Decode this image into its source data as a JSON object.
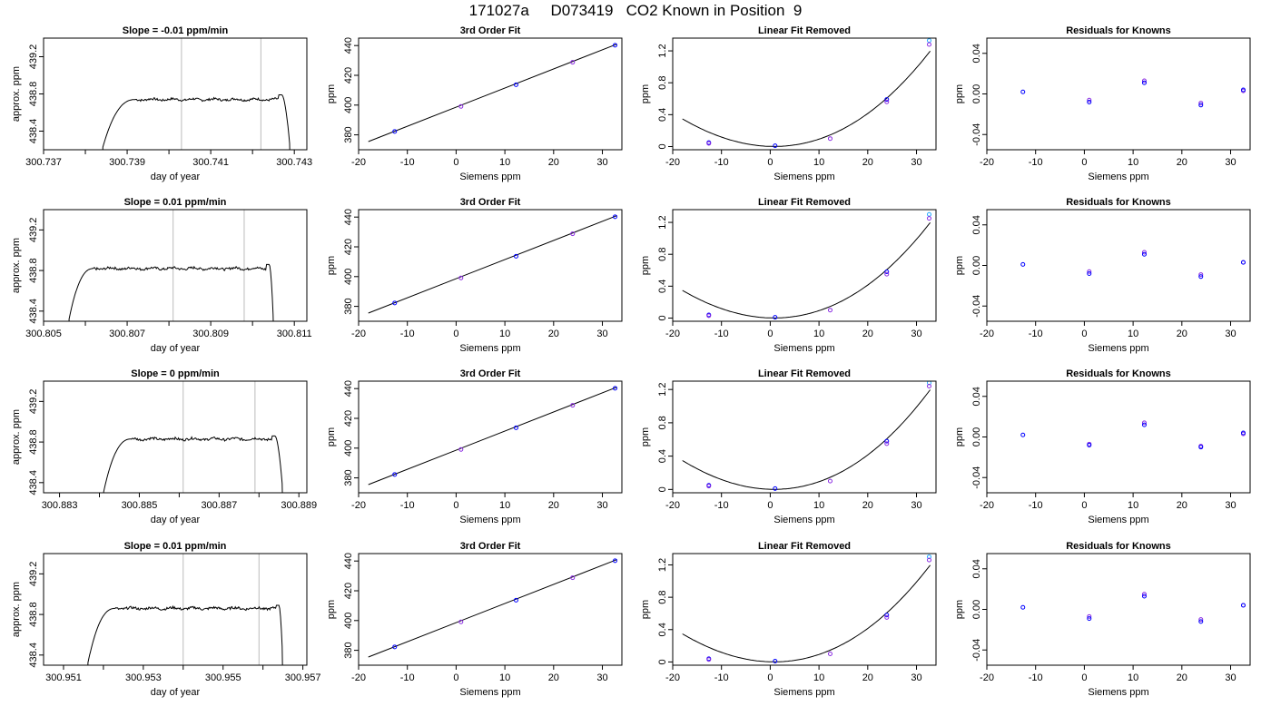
{
  "title": "171027a     D073419   CO2 Known in Position  9",
  "colors": {
    "axis": "#000000",
    "trace": "#000000",
    "vline": "#bbbbbb",
    "point_blue": "#0000ff",
    "point_purple": "#8a2be2",
    "point_cyan": "#22aaff"
  },
  "chart_data": [
    {
      "type": "line",
      "title": "Slope =  -0.01  ppm/min",
      "xlabel": "day of year",
      "ylabel": "approx. ppm",
      "xlim": [
        300.737,
        300.7433
      ],
      "ylim": [
        438.2,
        439.4
      ],
      "xticks": [
        300.737,
        300.738,
        300.739,
        300.74,
        300.741,
        300.742,
        300.743
      ],
      "xtick_labels": [
        "300.737",
        "",
        "300.739",
        "",
        "300.741",
        "",
        "300.743"
      ],
      "yticks": [
        438.4,
        438.8,
        439.2
      ],
      "ytick_labels": [
        "438.4",
        "438.8",
        "439.2"
      ],
      "vlines": [
        300.7403,
        300.7422
      ],
      "trace": {
        "rise": [
          300.7384,
          300.7392
        ],
        "fall": [
          300.7427,
          300.7429
        ],
        "level": 438.74,
        "top": 438.79,
        "bottom": 438.2,
        "noise": 0.012
      }
    },
    {
      "type": "line",
      "title": "3rd Order Fit",
      "xlabel": "Siemens ppm",
      "ylabel": "ppm",
      "xlim": [
        -20,
        34
      ],
      "ylim": [
        370,
        445
      ],
      "xticks": [
        -20,
        -10,
        0,
        10,
        20,
        30
      ],
      "yticks": [
        380,
        400,
        420,
        440
      ],
      "curve": {
        "type": "linear",
        "x0": -18,
        "x1": 33,
        "y0": 375.5,
        "y1": 441
      },
      "points": [
        {
          "x": -12.6,
          "y": 382.3
        },
        {
          "x": 1,
          "y": 399.1
        },
        {
          "x": 12.3,
          "y": 413.7
        },
        {
          "x": 23.9,
          "y": 428.8
        },
        {
          "x": 32.6,
          "y": 440.2
        }
      ]
    },
    {
      "type": "scatter",
      "title": "Linear Fit Removed",
      "xlabel": "Siemens ppm",
      "ylabel": "ppm",
      "xlim": [
        -20,
        34
      ],
      "ylim": [
        -0.04,
        1.36
      ],
      "xticks": [
        -20,
        -10,
        0,
        10,
        20,
        30
      ],
      "yticks": [
        0.0,
        0.4,
        0.8,
        1.2
      ],
      "curve": {
        "type": "cubic",
        "c0": 0.0019,
        "c1": -0.00166,
        "c2": 0.00104,
        "c3": 3.7e-06,
        "x0": -18,
        "x1": 32.8
      },
      "points": [
        {
          "x": -12.6,
          "y": 0.05
        },
        {
          "x": -12.6,
          "y": 0.04
        },
        {
          "x": 1,
          "y": 0.01
        },
        {
          "x": 12.3,
          "y": 0.1
        },
        {
          "x": 23.9,
          "y": 0.59
        },
        {
          "x": 23.9,
          "y": 0.56
        },
        {
          "x": 32.6,
          "y": 1.33,
          "c": "cyan"
        },
        {
          "x": 32.6,
          "y": 1.28
        }
      ]
    },
    {
      "type": "scatter",
      "title": "Residuals for Knowns",
      "xlabel": "Siemens ppm",
      "ylabel": "ppm",
      "xlim": [
        -20,
        34
      ],
      "ylim": [
        -0.055,
        0.055
      ],
      "xticks": [
        -20,
        -10,
        0,
        10,
        20,
        30
      ],
      "yticks": [
        -0.04,
        0.0,
        0.04
      ],
      "ytick_labels": [
        "-0.04",
        "0.00",
        "0.04"
      ],
      "points": [
        {
          "x": -12.6,
          "y": 0.002
        },
        {
          "x": 1,
          "y": -0.006
        },
        {
          "x": 1,
          "y": -0.008
        },
        {
          "x": 12.3,
          "y": 0.013
        },
        {
          "x": 12.3,
          "y": 0.011
        },
        {
          "x": 23.9,
          "y": -0.009
        },
        {
          "x": 23.9,
          "y": -0.011
        },
        {
          "x": 32.6,
          "y": 0.003
        },
        {
          "x": 32.6,
          "y": 0.004
        }
      ]
    },
    {
      "type": "line",
      "title": "Slope =  0.01  ppm/min",
      "xlabel": "day of year",
      "ylabel": "approx. ppm",
      "xlim": [
        300.805,
        300.8113
      ],
      "ylim": [
        438.3,
        439.4
      ],
      "xticks": [
        300.805,
        300.806,
        300.807,
        300.808,
        300.809,
        300.81,
        300.811
      ],
      "xtick_labels": [
        "300.805",
        "",
        "300.807",
        "",
        "300.809",
        "",
        "300.811"
      ],
      "yticks": [
        438.4,
        438.8,
        439.2
      ],
      "ytick_labels": [
        "438.4",
        "438.8",
        "439.2"
      ],
      "vlines": [
        300.8081,
        300.8098
      ],
      "trace": {
        "rise": [
          300.8056,
          300.8062
        ],
        "fall": [
          300.8104,
          300.8105
        ],
        "level": 438.82,
        "top": 438.86,
        "bottom": 438.3,
        "noise": 0.012
      }
    },
    {
      "type": "line",
      "title": "3rd Order Fit",
      "xlabel": "Siemens ppm",
      "ylabel": "ppm",
      "xlim": [
        -20,
        34
      ],
      "ylim": [
        370,
        445
      ],
      "xticks": [
        -20,
        -10,
        0,
        10,
        20,
        30
      ],
      "yticks": [
        380,
        400,
        420,
        440
      ],
      "curve": {
        "type": "linear",
        "x0": -18,
        "x1": 33,
        "y0": 375.5,
        "y1": 441
      },
      "points": [
        {
          "x": -12.6,
          "y": 382.3
        },
        {
          "x": 1,
          "y": 399.1
        },
        {
          "x": 12.3,
          "y": 413.7
        },
        {
          "x": 23.9,
          "y": 428.8
        },
        {
          "x": 32.6,
          "y": 440.2
        }
      ]
    },
    {
      "type": "scatter",
      "title": "Linear Fit Removed",
      "xlabel": "Siemens ppm",
      "ylabel": "ppm",
      "xlim": [
        -20,
        34
      ],
      "ylim": [
        -0.04,
        1.36
      ],
      "xticks": [
        -20,
        -10,
        0,
        10,
        20,
        30
      ],
      "yticks": [
        0.0,
        0.4,
        0.8,
        1.2
      ],
      "curve": {
        "type": "cubic",
        "c0": 0.0019,
        "c1": -0.00166,
        "c2": 0.00104,
        "c3": 3.7e-06,
        "x0": -18,
        "x1": 32.8
      },
      "points": [
        {
          "x": -12.6,
          "y": 0.04
        },
        {
          "x": -12.6,
          "y": 0.03
        },
        {
          "x": 1,
          "y": 0.01
        },
        {
          "x": 12.3,
          "y": 0.1
        },
        {
          "x": 23.9,
          "y": 0.58
        },
        {
          "x": 23.9,
          "y": 0.55
        },
        {
          "x": 32.6,
          "y": 1.3,
          "c": "cyan"
        },
        {
          "x": 32.6,
          "y": 1.25
        }
      ]
    },
    {
      "type": "scatter",
      "title": "Residuals for Knowns",
      "xlabel": "Siemens ppm",
      "ylabel": "ppm",
      "xlim": [
        -20,
        34
      ],
      "ylim": [
        -0.055,
        0.055
      ],
      "xticks": [
        -20,
        -10,
        0,
        10,
        20,
        30
      ],
      "yticks": [
        -0.04,
        0.0,
        0.04
      ],
      "ytick_labels": [
        "-0.04",
        "0.00",
        "0.04"
      ],
      "points": [
        {
          "x": -12.6,
          "y": 0.001
        },
        {
          "x": 1,
          "y": -0.006
        },
        {
          "x": 1,
          "y": -0.008
        },
        {
          "x": 12.3,
          "y": 0.013
        },
        {
          "x": 12.3,
          "y": 0.011
        },
        {
          "x": 23.9,
          "y": -0.009
        },
        {
          "x": 23.9,
          "y": -0.011
        },
        {
          "x": 32.6,
          "y": 0.003
        },
        {
          "x": 32.6,
          "y": 0.003
        }
      ]
    },
    {
      "type": "line",
      "title": "Slope =  0  ppm/min",
      "xlabel": "day of year",
      "ylabel": "approx. ppm",
      "xlim": [
        300.8826,
        300.8892
      ],
      "ylim": [
        438.3,
        439.4
      ],
      "xticks": [
        300.883,
        300.884,
        300.885,
        300.886,
        300.887,
        300.888,
        300.889
      ],
      "xtick_labels": [
        "300.883",
        "",
        "300.885",
        "",
        "300.887",
        "",
        "300.889"
      ],
      "yticks": [
        438.4,
        438.8,
        439.2
      ],
      "ytick_labels": [
        "438.4",
        "438.8",
        "439.2"
      ],
      "vlines": [
        300.8861,
        300.8879
      ],
      "trace": {
        "rise": [
          300.8841,
          300.8848
        ],
        "fall": [
          300.8884,
          300.8886
        ],
        "level": 438.83,
        "top": 438.86,
        "bottom": 438.3,
        "noise": 0.012
      }
    },
    {
      "type": "line",
      "title": "3rd Order Fit",
      "xlabel": "Siemens ppm",
      "ylabel": "ppm",
      "xlim": [
        -20,
        34
      ],
      "ylim": [
        370,
        445
      ],
      "xticks": [
        -20,
        -10,
        0,
        10,
        20,
        30
      ],
      "yticks": [
        380,
        400,
        420,
        440
      ],
      "curve": {
        "type": "linear",
        "x0": -18,
        "x1": 33,
        "y0": 375.5,
        "y1": 441
      },
      "points": [
        {
          "x": -12.6,
          "y": 382.3
        },
        {
          "x": 1,
          "y": 399.1
        },
        {
          "x": 12.3,
          "y": 413.7
        },
        {
          "x": 23.9,
          "y": 428.8
        },
        {
          "x": 32.6,
          "y": 440.2
        }
      ]
    },
    {
      "type": "scatter",
      "title": "Linear Fit Removed",
      "xlabel": "Siemens ppm",
      "ylabel": "ppm",
      "xlim": [
        -20,
        34
      ],
      "ylim": [
        -0.04,
        1.3
      ],
      "xticks": [
        -20,
        -10,
        0,
        10,
        20,
        30
      ],
      "yticks": [
        0.0,
        0.4,
        0.8,
        1.2
      ],
      "curve": {
        "type": "cubic",
        "c0": 0.0019,
        "c1": -0.00166,
        "c2": 0.00104,
        "c3": 3.7e-06,
        "x0": -18,
        "x1": 32.8
      },
      "points": [
        {
          "x": -12.6,
          "y": 0.05
        },
        {
          "x": -12.6,
          "y": 0.04
        },
        {
          "x": 1,
          "y": 0.01
        },
        {
          "x": 12.3,
          "y": 0.1
        },
        {
          "x": 23.9,
          "y": 0.58
        },
        {
          "x": 23.9,
          "y": 0.55
        },
        {
          "x": 32.6,
          "y": 1.28,
          "c": "cyan"
        },
        {
          "x": 32.6,
          "y": 1.24
        }
      ]
    },
    {
      "type": "scatter",
      "title": "Residuals for Knowns",
      "xlabel": "Siemens ppm",
      "ylabel": "ppm",
      "xlim": [
        -20,
        34
      ],
      "ylim": [
        -0.055,
        0.055
      ],
      "xticks": [
        -20,
        -10,
        0,
        10,
        20,
        30
      ],
      "yticks": [
        -0.04,
        0.0,
        0.04
      ],
      "ytick_labels": [
        "-0.04",
        "0.00",
        "0.04"
      ],
      "points": [
        {
          "x": -12.6,
          "y": 0.002
        },
        {
          "x": 1,
          "y": -0.007
        },
        {
          "x": 1,
          "y": -0.008
        },
        {
          "x": 12.3,
          "y": 0.014
        },
        {
          "x": 12.3,
          "y": 0.012
        },
        {
          "x": 23.9,
          "y": -0.009
        },
        {
          "x": 23.9,
          "y": -0.01
        },
        {
          "x": 32.6,
          "y": 0.003
        },
        {
          "x": 32.6,
          "y": 0.004
        }
      ]
    },
    {
      "type": "line",
      "title": "Slope =  0.01  ppm/min",
      "xlabel": "day of year",
      "ylabel": "approx. ppm",
      "xlim": [
        300.9505,
        300.9571
      ],
      "ylim": [
        438.3,
        439.4
      ],
      "xticks": [
        300.951,
        300.952,
        300.953,
        300.954,
        300.955,
        300.956,
        300.957
      ],
      "xtick_labels": [
        "300.951",
        "",
        "300.953",
        "",
        "300.955",
        "",
        "300.957"
      ],
      "yticks": [
        438.4,
        438.8,
        439.2
      ],
      "ytick_labels": [
        "438.4",
        "438.8",
        "439.2"
      ],
      "vlines": [
        300.954,
        300.9559
      ],
      "trace": {
        "rise": [
          300.9516,
          300.9523
        ],
        "fall": [
          300.9564,
          300.9565
        ],
        "level": 438.86,
        "top": 438.89,
        "bottom": 438.3,
        "noise": 0.012
      }
    },
    {
      "type": "line",
      "title": "3rd Order Fit",
      "xlabel": "Siemens ppm",
      "ylabel": "ppm",
      "xlim": [
        -20,
        34
      ],
      "ylim": [
        370,
        445
      ],
      "xticks": [
        -20,
        -10,
        0,
        10,
        20,
        30
      ],
      "yticks": [
        380,
        400,
        420,
        440
      ],
      "curve": {
        "type": "linear",
        "x0": -18,
        "x1": 33,
        "y0": 375.5,
        "y1": 441
      },
      "points": [
        {
          "x": -12.6,
          "y": 382.3
        },
        {
          "x": 1,
          "y": 399.1
        },
        {
          "x": 12.3,
          "y": 413.7
        },
        {
          "x": 23.9,
          "y": 428.8
        },
        {
          "x": 32.6,
          "y": 440.2
        }
      ]
    },
    {
      "type": "scatter",
      "title": "Linear Fit Removed",
      "xlabel": "Siemens ppm",
      "ylabel": "ppm",
      "xlim": [
        -20,
        34
      ],
      "ylim": [
        -0.04,
        1.34
      ],
      "xticks": [
        -20,
        -10,
        0,
        10,
        20,
        30
      ],
      "yticks": [
        0.0,
        0.4,
        0.8,
        1.2
      ],
      "curve": {
        "type": "cubic",
        "c0": 0.0019,
        "c1": -0.00166,
        "c2": 0.00104,
        "c3": 3.7e-06,
        "x0": -18,
        "x1": 32.8
      },
      "points": [
        {
          "x": -12.6,
          "y": 0.04
        },
        {
          "x": -12.6,
          "y": 0.03
        },
        {
          "x": 1,
          "y": 0.01
        },
        {
          "x": 12.3,
          "y": 0.1
        },
        {
          "x": 23.9,
          "y": 0.58
        },
        {
          "x": 23.9,
          "y": 0.55
        },
        {
          "x": 32.6,
          "y": 1.3,
          "c": "cyan"
        },
        {
          "x": 32.6,
          "y": 1.26
        }
      ]
    },
    {
      "type": "scatter",
      "title": "Residuals for Knowns",
      "xlabel": "Siemens ppm",
      "ylabel": "ppm",
      "xlim": [
        -20,
        34
      ],
      "ylim": [
        -0.055,
        0.055
      ],
      "xticks": [
        -20,
        -10,
        0,
        10,
        20,
        30
      ],
      "yticks": [
        -0.04,
        0.0,
        0.04
      ],
      "ytick_labels": [
        "-0.04",
        "0.00",
        "0.04"
      ],
      "points": [
        {
          "x": -12.6,
          "y": 0.002
        },
        {
          "x": 1,
          "y": -0.007
        },
        {
          "x": 1,
          "y": -0.009
        },
        {
          "x": 12.3,
          "y": 0.015
        },
        {
          "x": 12.3,
          "y": 0.013
        },
        {
          "x": 23.9,
          "y": -0.01
        },
        {
          "x": 23.9,
          "y": -0.012
        },
        {
          "x": 32.6,
          "y": 0.004
        },
        {
          "x": 32.6,
          "y": 0.004
        }
      ]
    }
  ]
}
